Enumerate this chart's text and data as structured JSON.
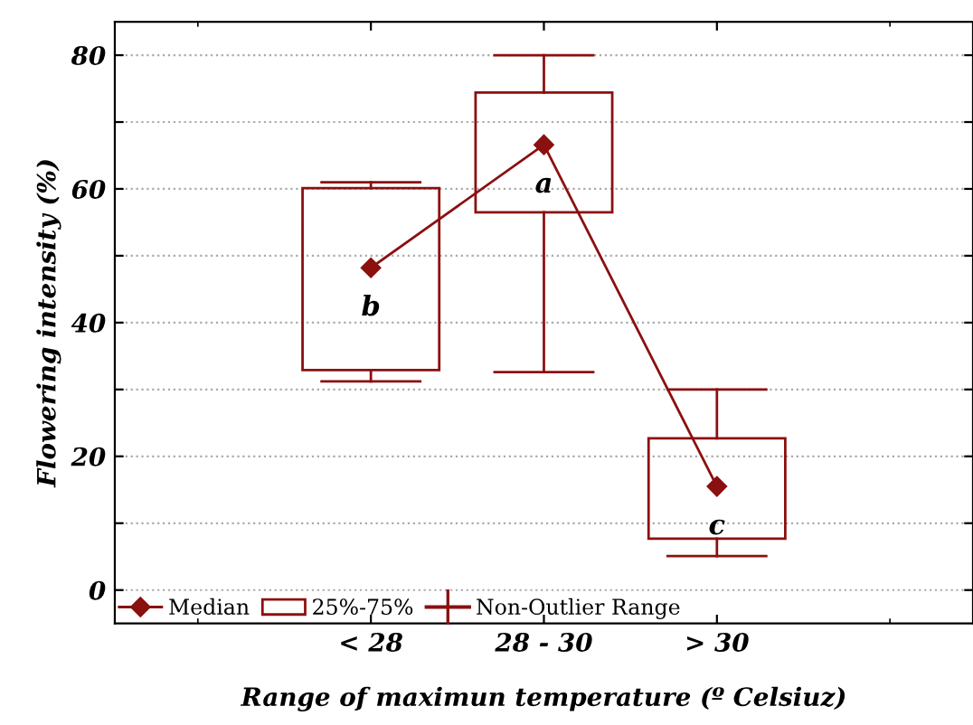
{
  "chart_data": {
    "type": "box",
    "xlabel": "Range of maximun temperature (º Celsiuz)",
    "ylabel": "Flowering intensity (%)",
    "categories": [
      "< 28",
      "28 - 30",
      "> 30"
    ],
    "series": [
      {
        "name": "25%-75%",
        "color": "#8b1010",
        "boxes": [
          {
            "low": 31.2,
            "q1": 32.9,
            "median": 48.2,
            "q3": 60.1,
            "high": 61.0
          },
          {
            "low": 32.6,
            "q1": 56.5,
            "median": 66.6,
            "q3": 74.4,
            "high": 80.0
          },
          {
            "low": 5.1,
            "q1": 7.7,
            "median": 15.5,
            "q3": 22.7,
            "high": 30.0
          }
        ]
      }
    ],
    "annotations": [
      "b",
      "a",
      "c",
      "Median",
      "Non-Outlier Range"
    ],
    "ylim": [
      -5,
      85
    ],
    "yticks": [
      0,
      {
        "value": 10,
        "label": null
      },
      20,
      {
        "value": 30,
        "label": null
      },
      40,
      {
        "value": 50,
        "label": null
      },
      60,
      {
        "value": 70,
        "label": null
      },
      80
    ],
    "grid": "y",
    "legend": "bottom left"
  }
}
